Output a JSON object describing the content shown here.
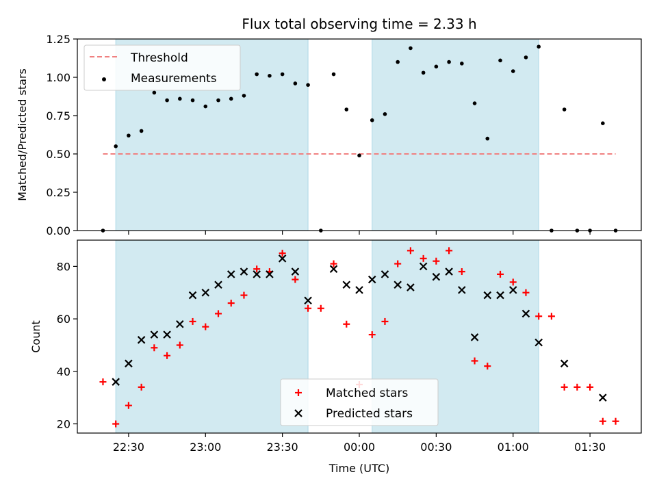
{
  "chart_data": [
    {
      "type": "scatter",
      "title": "Flux total observing time = 2.33 h",
      "ylabel": "Matched/Predicted stars",
      "xlabel": "",
      "ylim": [
        0,
        1.25
      ],
      "yticks": [
        0.0,
        0.25,
        0.5,
        0.75,
        1.0,
        1.25
      ],
      "ytick_labels": [
        "0.00",
        "0.25",
        "0.50",
        "0.75",
        "1.00",
        "1.25"
      ],
      "xlim_minutes_from_2230": [
        -20,
        200
      ],
      "shaded_intervals": [
        [
          "22:25",
          "23:40"
        ],
        [
          "00:05",
          "01:10"
        ]
      ],
      "shade_color": "#add8e6",
      "legend_position": "top-left",
      "threshold": {
        "name": "Threshold",
        "value": 0.5,
        "x_range": [
          "22:20",
          "01:40"
        ],
        "color": "#f08080",
        "style": "dashed"
      },
      "series": [
        {
          "name": "Measurements",
          "color": "#000000",
          "marker": "dot",
          "points": [
            [
              "22:20",
              0.0
            ],
            [
              "22:25",
              0.55
            ],
            [
              "22:30",
              0.62
            ],
            [
              "22:35",
              0.65
            ],
            [
              "22:40",
              0.9
            ],
            [
              "22:45",
              0.85
            ],
            [
              "22:50",
              0.86
            ],
            [
              "22:55",
              0.85
            ],
            [
              "23:00",
              0.81
            ],
            [
              "23:05",
              0.85
            ],
            [
              "23:10",
              0.86
            ],
            [
              "23:15",
              0.88
            ],
            [
              "23:20",
              1.02
            ],
            [
              "23:25",
              1.01
            ],
            [
              "23:30",
              1.02
            ],
            [
              "23:35",
              0.96
            ],
            [
              "23:40",
              0.95
            ],
            [
              "23:45",
              0.0
            ],
            [
              "23:50",
              1.02
            ],
            [
              "23:55",
              0.79
            ],
            [
              "00:00",
              0.49
            ],
            [
              "00:05",
              0.72
            ],
            [
              "00:10",
              0.76
            ],
            [
              "00:15",
              1.1
            ],
            [
              "00:20",
              1.19
            ],
            [
              "00:25",
              1.03
            ],
            [
              "00:30",
              1.07
            ],
            [
              "00:35",
              1.1
            ],
            [
              "00:40",
              1.09
            ],
            [
              "00:45",
              0.83
            ],
            [
              "00:50",
              0.6
            ],
            [
              "00:55",
              1.11
            ],
            [
              "01:00",
              1.04
            ],
            [
              "01:05",
              1.13
            ],
            [
              "01:10",
              1.2
            ],
            [
              "01:15",
              0.0
            ],
            [
              "01:20",
              0.79
            ],
            [
              "01:25",
              0.0
            ],
            [
              "01:30",
              0.0
            ],
            [
              "01:35",
              0.7
            ],
            [
              "01:40",
              0.0
            ]
          ]
        }
      ]
    },
    {
      "type": "scatter",
      "title": "",
      "ylabel": "Count",
      "xlabel": "Time (UTC)",
      "ylim": [
        16.5,
        90
      ],
      "yticks": [
        20,
        40,
        60,
        80
      ],
      "ytick_labels": [
        "20",
        "40",
        "60",
        "80"
      ],
      "xticks": [
        "22:30",
        "23:00",
        "23:30",
        "00:00",
        "00:30",
        "01:00",
        "01:30"
      ],
      "xlim_minutes_from_2230": [
        -20,
        200
      ],
      "shaded_intervals": [
        [
          "22:25",
          "23:40"
        ],
        [
          "00:05",
          "01:10"
        ]
      ],
      "shade_color": "#add8e6",
      "legend_position": "bottom-center",
      "series": [
        {
          "name": "Matched stars",
          "color": "#ff0000",
          "marker": "plus",
          "points": [
            [
              "22:20",
              36
            ],
            [
              "22:25",
              20
            ],
            [
              "22:30",
              27
            ],
            [
              "22:35",
              34
            ],
            [
              "22:40",
              49
            ],
            [
              "22:45",
              46
            ],
            [
              "22:50",
              50
            ],
            [
              "22:55",
              59
            ],
            [
              "23:00",
              57
            ],
            [
              "23:05",
              62
            ],
            [
              "23:10",
              66
            ],
            [
              "23:15",
              69
            ],
            [
              "23:20",
              79
            ],
            [
              "23:25",
              78
            ],
            [
              "23:30",
              85
            ],
            [
              "23:35",
              75
            ],
            [
              "23:40",
              64
            ],
            [
              "23:45",
              64
            ],
            [
              "23:50",
              81
            ],
            [
              "23:55",
              58
            ],
            [
              "00:00",
              35
            ],
            [
              "00:05",
              54
            ],
            [
              "00:10",
              59
            ],
            [
              "00:15",
              81
            ],
            [
              "00:20",
              86
            ],
            [
              "00:25",
              83
            ],
            [
              "00:30",
              82
            ],
            [
              "00:35",
              86
            ],
            [
              "00:40",
              78
            ],
            [
              "00:45",
              44
            ],
            [
              "00:50",
              42
            ],
            [
              "00:55",
              77
            ],
            [
              "01:00",
              74
            ],
            [
              "01:05",
              70
            ],
            [
              "01:10",
              61
            ],
            [
              "01:15",
              61
            ],
            [
              "01:20",
              34
            ],
            [
              "01:25",
              34
            ],
            [
              "01:30",
              34
            ],
            [
              "01:35",
              21
            ],
            [
              "01:40",
              21
            ]
          ]
        },
        {
          "name": "Predicted stars",
          "color": "#000000",
          "marker": "x",
          "points": [
            [
              "22:25",
              36
            ],
            [
              "22:30",
              43
            ],
            [
              "22:35",
              52
            ],
            [
              "22:40",
              54
            ],
            [
              "22:45",
              54
            ],
            [
              "22:50",
              58
            ],
            [
              "22:55",
              69
            ],
            [
              "23:00",
              70
            ],
            [
              "23:05",
              73
            ],
            [
              "23:10",
              77
            ],
            [
              "23:15",
              78
            ],
            [
              "23:20",
              77
            ],
            [
              "23:25",
              77
            ],
            [
              "23:30",
              83
            ],
            [
              "23:35",
              78
            ],
            [
              "23:40",
              67
            ],
            [
              "23:50",
              79
            ],
            [
              "23:55",
              73
            ],
            [
              "00:00",
              71
            ],
            [
              "00:05",
              75
            ],
            [
              "00:10",
              77
            ],
            [
              "00:15",
              73
            ],
            [
              "00:20",
              72
            ],
            [
              "00:25",
              80
            ],
            [
              "00:30",
              76
            ],
            [
              "00:35",
              78
            ],
            [
              "00:40",
              71
            ],
            [
              "00:45",
              53
            ],
            [
              "00:50",
              69
            ],
            [
              "00:55",
              69
            ],
            [
              "01:00",
              71
            ],
            [
              "01:05",
              62
            ],
            [
              "01:10",
              51
            ],
            [
              "01:20",
              43
            ],
            [
              "01:35",
              30
            ]
          ]
        }
      ]
    }
  ]
}
